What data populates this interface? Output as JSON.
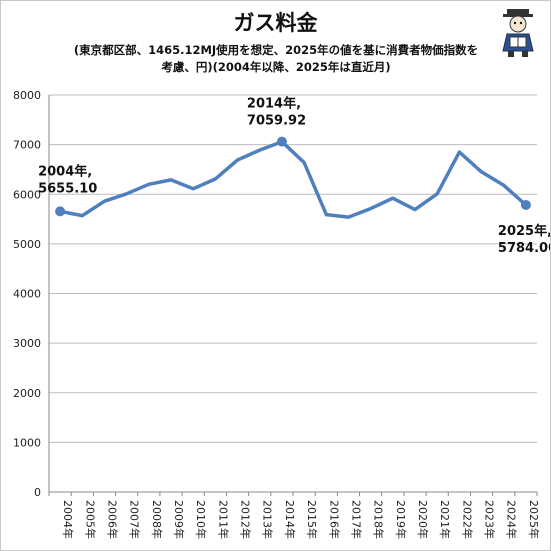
{
  "chart_data": {
    "type": "line",
    "title": "ガス料金",
    "subtitle": "(東京都区部、1465.12MJ使用を想定、2025年の値を基に消費者物価指数を考慮、円)(2004年以降、2025年は直近月)",
    "subtitle_line1": "(東京都区部、1465.12MJ使用を想定、2025年の値を基に消費者物価指数を",
    "subtitle_line2": "考慮、円)(2004年以降、2025年は直近月)",
    "categories": [
      "2004年",
      "2005年",
      "2006年",
      "2007年",
      "2008年",
      "2009年",
      "2010年",
      "2011年",
      "2012年",
      "2013年",
      "2014年",
      "2015年",
      "2016年",
      "2017年",
      "2018年",
      "2019年",
      "2020年",
      "2021年",
      "2022年",
      "2023年",
      "2024年",
      "2025年"
    ],
    "values": [
      5655.1,
      5570,
      5860,
      6010,
      6200,
      6290,
      6110,
      6310,
      6690,
      6890,
      7059.92,
      6640,
      5590,
      5540,
      5710,
      5920,
      5690,
      6010,
      6850,
      6450,
      6180,
      5784.0
    ],
    "ylim": [
      0,
      8000
    ],
    "yticks": [
      0,
      1000,
      2000,
      3000,
      4000,
      5000,
      6000,
      7000,
      8000
    ],
    "grid": true,
    "legend": "none",
    "line_color": "#4f7fbf",
    "grid_color": "#bdbdbd",
    "annotations": [
      {
        "index": 0,
        "line1": "2004年,",
        "line2": "5655.10"
      },
      {
        "index": 10,
        "line1": "2014年,",
        "line2": "7059.92"
      },
      {
        "index": 21,
        "line1": "2025年,",
        "line2": "5784.00"
      }
    ]
  },
  "mascot_icon": "reading-mascot-icon"
}
